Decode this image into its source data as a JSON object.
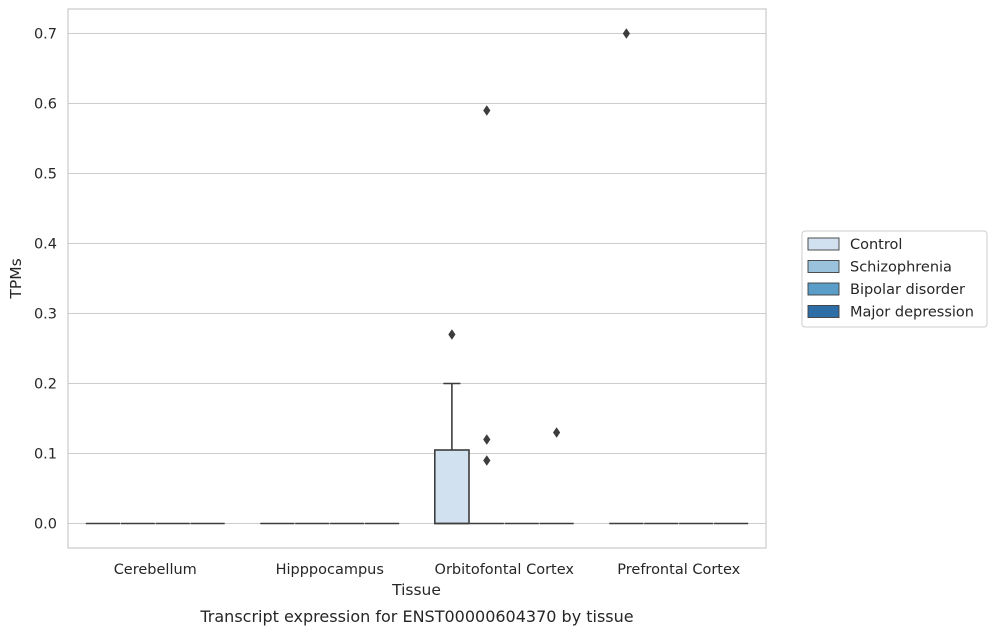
{
  "chart_data": {
    "type": "box",
    "caption": "Transcript expression for ENST00000604370 by tissue",
    "xlabel": "Tissue",
    "ylabel": "TPMs",
    "ylim": [
      -0.035,
      0.735
    ],
    "yticks": [
      0.0,
      0.1,
      0.2,
      0.3,
      0.4,
      0.5,
      0.6,
      0.7
    ],
    "ytick_labels": [
      "0.0",
      "0.1",
      "0.2",
      "0.3",
      "0.4",
      "0.5",
      "0.6",
      "0.7"
    ],
    "grid": true,
    "legend_position": "right, outside plot",
    "categories": [
      "Cerebellum",
      "Hipppocampus",
      "Orbitofontal Cortex",
      "Prefrontal Cortex"
    ],
    "series": [
      {
        "name": "Control",
        "color": "#d1e1f0",
        "boxes": [
          {
            "category": "Cerebellum",
            "q1": 0,
            "median": 0,
            "q3": 0,
            "whisker_low": 0,
            "whisker_high": 0,
            "outliers": []
          },
          {
            "category": "Hipppocampus",
            "q1": 0,
            "median": 0,
            "q3": 0,
            "whisker_low": 0,
            "whisker_high": 0,
            "outliers": []
          },
          {
            "category": "Orbitofontal Cortex",
            "q1": 0,
            "median": 0,
            "q3": 0.105,
            "whisker_low": 0,
            "whisker_high": 0.2,
            "outliers": [
              0.27
            ]
          },
          {
            "category": "Prefrontal Cortex",
            "q1": 0,
            "median": 0,
            "q3": 0,
            "whisker_low": 0,
            "whisker_high": 0,
            "outliers": [
              0.7
            ]
          }
        ]
      },
      {
        "name": "Schizophrenia",
        "color": "#9ac2dc",
        "boxes": [
          {
            "category": "Cerebellum",
            "q1": 0,
            "median": 0,
            "q3": 0,
            "whisker_low": 0,
            "whisker_high": 0,
            "outliers": []
          },
          {
            "category": "Hipppocampus",
            "q1": 0,
            "median": 0,
            "q3": 0,
            "whisker_low": 0,
            "whisker_high": 0,
            "outliers": []
          },
          {
            "category": "Orbitofontal Cortex",
            "q1": 0,
            "median": 0,
            "q3": 0,
            "whisker_low": 0,
            "whisker_high": 0,
            "outliers": [
              0.59,
              0.12,
              0.09
            ]
          },
          {
            "category": "Prefrontal Cortex",
            "q1": 0,
            "median": 0,
            "q3": 0,
            "whisker_low": 0,
            "whisker_high": 0,
            "outliers": []
          }
        ]
      },
      {
        "name": "Bipolar disorder",
        "color": "#5b9dc9",
        "boxes": [
          {
            "category": "Cerebellum",
            "q1": 0,
            "median": 0,
            "q3": 0,
            "whisker_low": 0,
            "whisker_high": 0,
            "outliers": []
          },
          {
            "category": "Hipppocampus",
            "q1": 0,
            "median": 0,
            "q3": 0,
            "whisker_low": 0,
            "whisker_high": 0,
            "outliers": []
          },
          {
            "category": "Orbitofontal Cortex",
            "q1": 0,
            "median": 0,
            "q3": 0,
            "whisker_low": 0,
            "whisker_high": 0,
            "outliers": []
          },
          {
            "category": "Prefrontal Cortex",
            "q1": 0,
            "median": 0,
            "q3": 0,
            "whisker_low": 0,
            "whisker_high": 0,
            "outliers": []
          }
        ]
      },
      {
        "name": "Major depression",
        "color": "#2e6ea6",
        "boxes": [
          {
            "category": "Cerebellum",
            "q1": 0,
            "median": 0,
            "q3": 0,
            "whisker_low": 0,
            "whisker_high": 0,
            "outliers": []
          },
          {
            "category": "Hipppocampus",
            "q1": 0,
            "median": 0,
            "q3": 0,
            "whisker_low": 0,
            "whisker_high": 0,
            "outliers": []
          },
          {
            "category": "Orbitofontal Cortex",
            "q1": 0,
            "median": 0,
            "q3": 0,
            "whisker_low": 0,
            "whisker_high": 0,
            "outliers": [
              0.13
            ]
          },
          {
            "category": "Prefrontal Cortex",
            "q1": 0,
            "median": 0,
            "q3": 0,
            "whisker_low": 0,
            "whisker_high": 0,
            "outliers": []
          }
        ]
      }
    ]
  }
}
